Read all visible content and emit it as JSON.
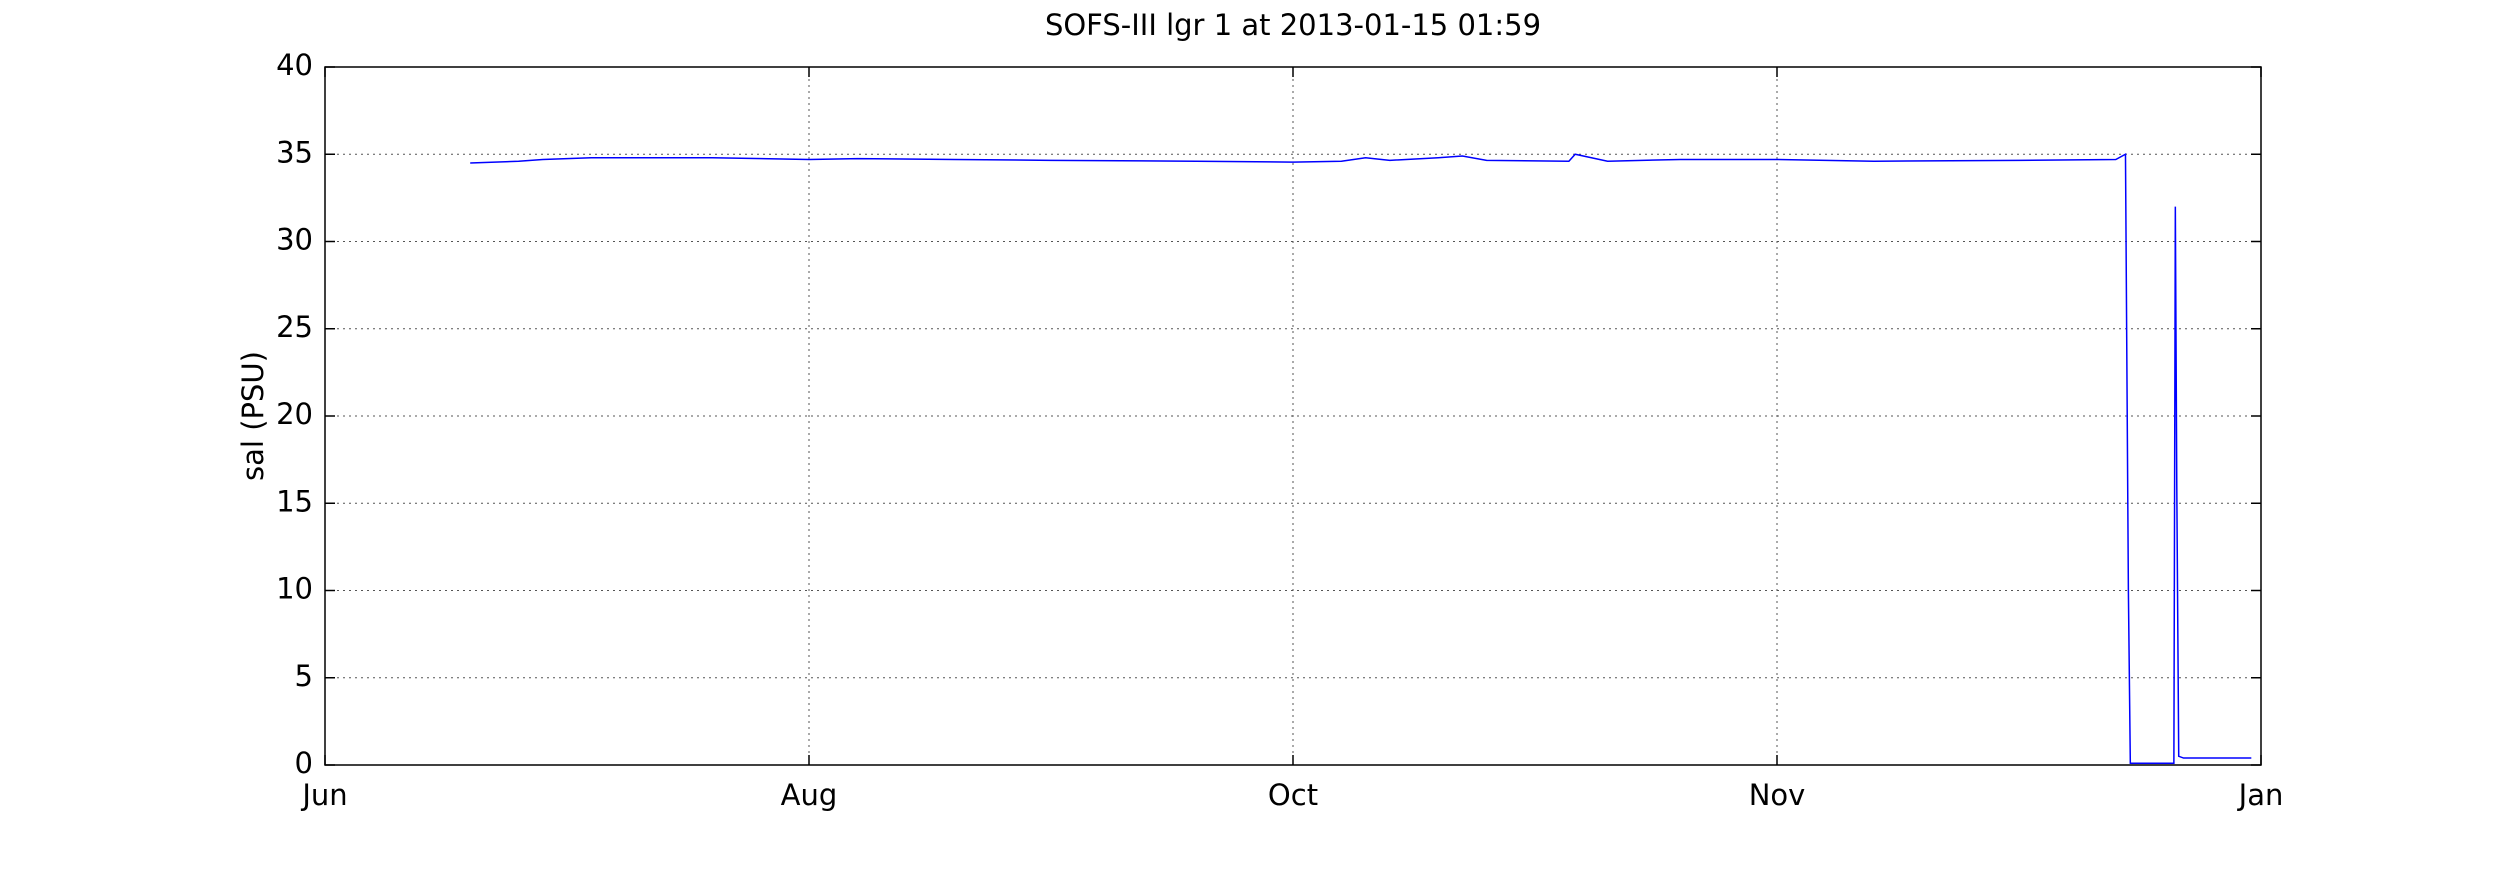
{
  "chart_data": {
    "type": "line",
    "title": "SOFS-III lgr 1 at 2013-01-15 01:59",
    "y_label": "sal (PSU)",
    "x": [
      0.3,
      0.4,
      0.45,
      0.55,
      0.8,
      1.0,
      1.1,
      1.3,
      1.5,
      1.8,
      2.0,
      2.1,
      2.15,
      2.2,
      2.3,
      2.35,
      2.4,
      2.57,
      2.583,
      2.65,
      2.8,
      3.0,
      3.2,
      3.5,
      3.7,
      3.72,
      3.726,
      3.73,
      3.82,
      3.823,
      3.826,
      3.83,
      3.84,
      3.98
    ],
    "series": [
      {
        "name": "sal",
        "color": "#0000ff",
        "values": [
          34.5,
          34.6,
          34.7,
          34.8,
          34.8,
          34.7,
          34.75,
          34.7,
          34.65,
          34.6,
          34.55,
          34.6,
          34.8,
          34.65,
          34.8,
          34.9,
          34.65,
          34.6,
          35.0,
          34.6,
          34.7,
          34.7,
          34.6,
          34.65,
          34.7,
          35.0,
          10,
          0.1,
          0.1,
          32,
          16,
          0.5,
          0.4,
          0.4
        ]
      }
    ],
    "xlim": [
      0,
      4
    ],
    "xticks": [
      {
        "value": 0,
        "label": "Jun"
      },
      {
        "value": 1,
        "label": "Aug"
      },
      {
        "value": 2,
        "label": "Oct"
      },
      {
        "value": 3,
        "label": "Nov"
      },
      {
        "value": 4,
        "label": "Jan"
      }
    ],
    "ylim": [
      0,
      40
    ],
    "yticks": [
      0,
      5,
      10,
      15,
      20,
      25,
      30,
      35,
      40
    ],
    "grid": true
  }
}
